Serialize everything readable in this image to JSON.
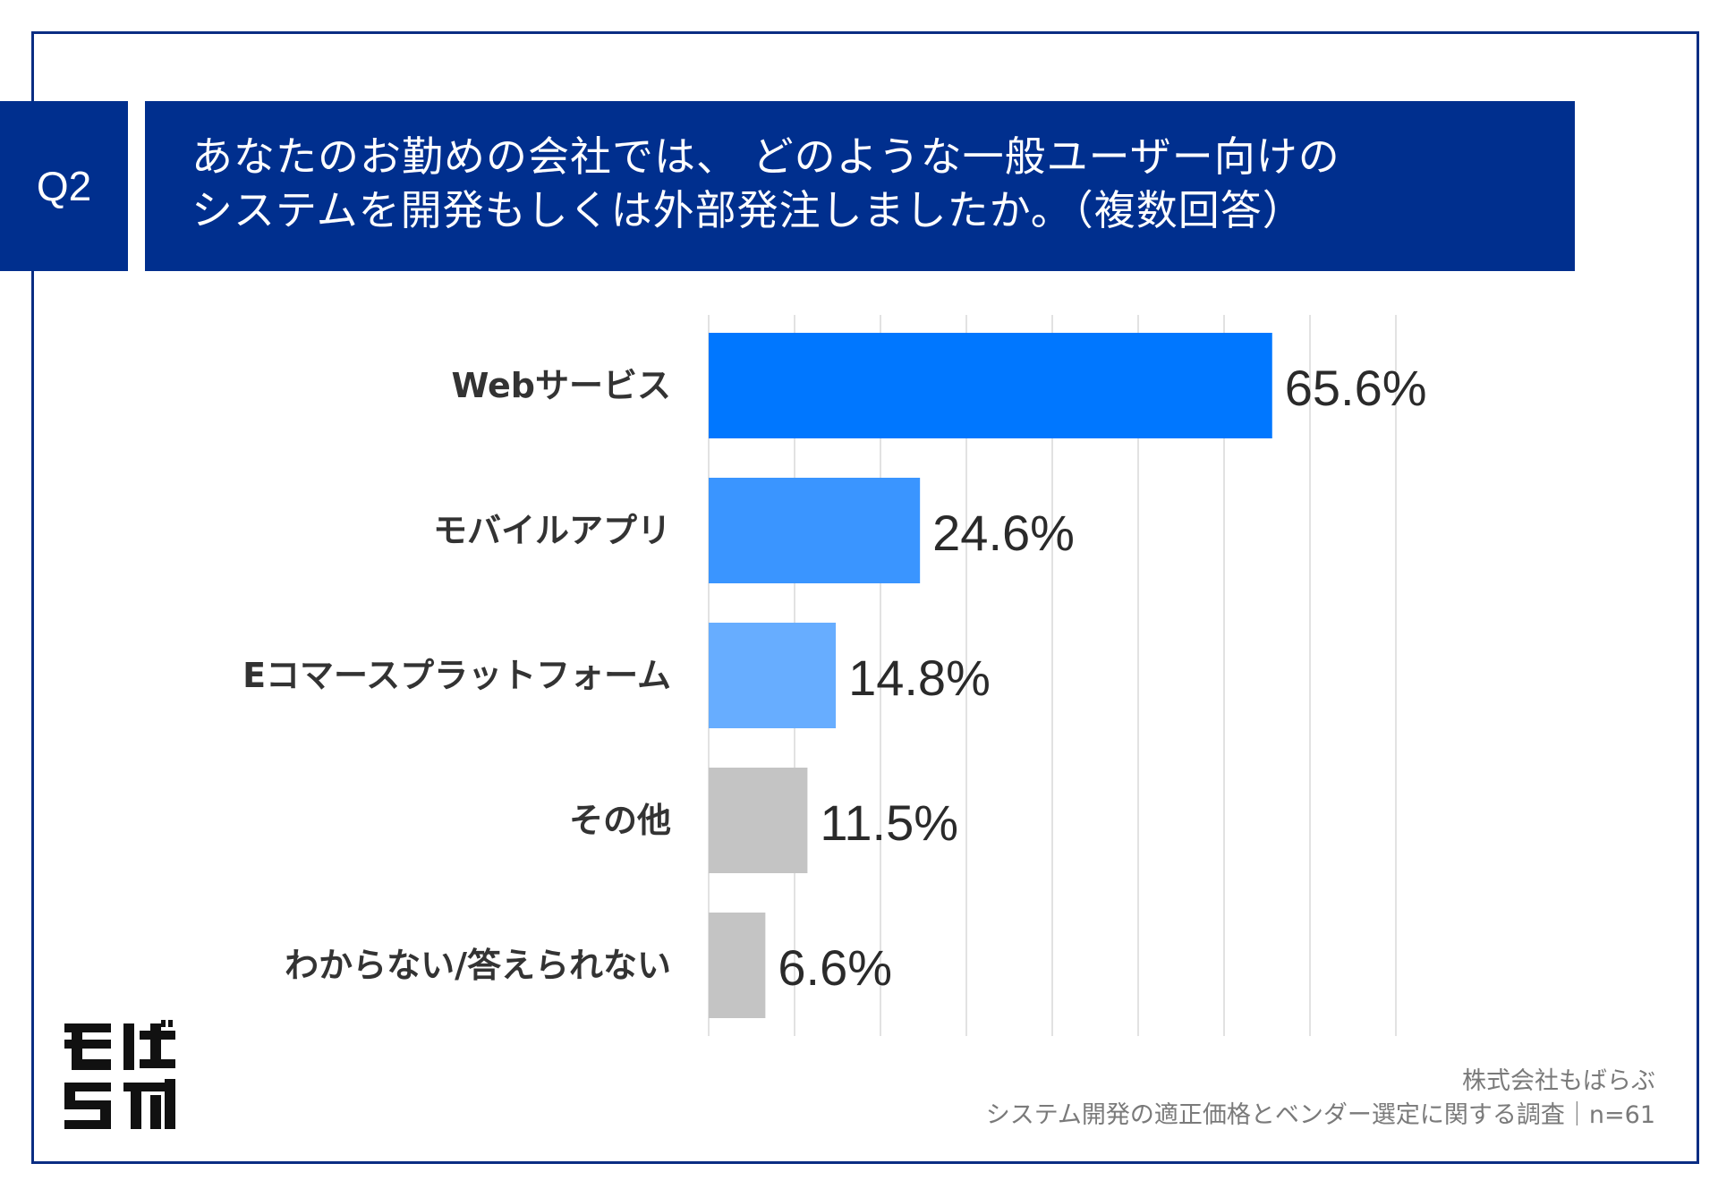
{
  "header": {
    "badge": "Q2",
    "title_line1": "あなたのお勤めの会社では、 どのような一般ユーザー向けの",
    "title_line2": "システムを開発もしくは外部発注しましたか。（複数回答）"
  },
  "footer": {
    "line1": "株式会社もばらぶ",
    "line2": "システム開発の適正価格とベンダー選定に関する調査｜n=61"
  },
  "logo": {
    "icon": "mobalab-logo",
    "text": "もばらぶ"
  },
  "chart_data": {
    "type": "bar",
    "orientation": "horizontal",
    "title": "あなたのお勤めの会社では、 どのような一般ユーザー向けのシステムを開発もしくは外部発注しましたか。（複数回答）",
    "categories": [
      "Webサービス",
      "モバイルアプリ",
      "Eコマースプラットフォーム",
      "その他",
      "わからない/答えられない"
    ],
    "values": [
      65.6,
      24.6,
      14.8,
      11.5,
      6.6
    ],
    "labels": [
      "65.6%",
      "24.6%",
      "14.8%",
      "11.5%",
      "6.6%"
    ],
    "colors": [
      "#0077ff",
      "#3a95ff",
      "#67adff",
      "#c4c4c4",
      "#c4c4c4"
    ],
    "xlim": [
      0,
      80
    ],
    "grid": true,
    "xlabel": "",
    "ylabel": ""
  }
}
